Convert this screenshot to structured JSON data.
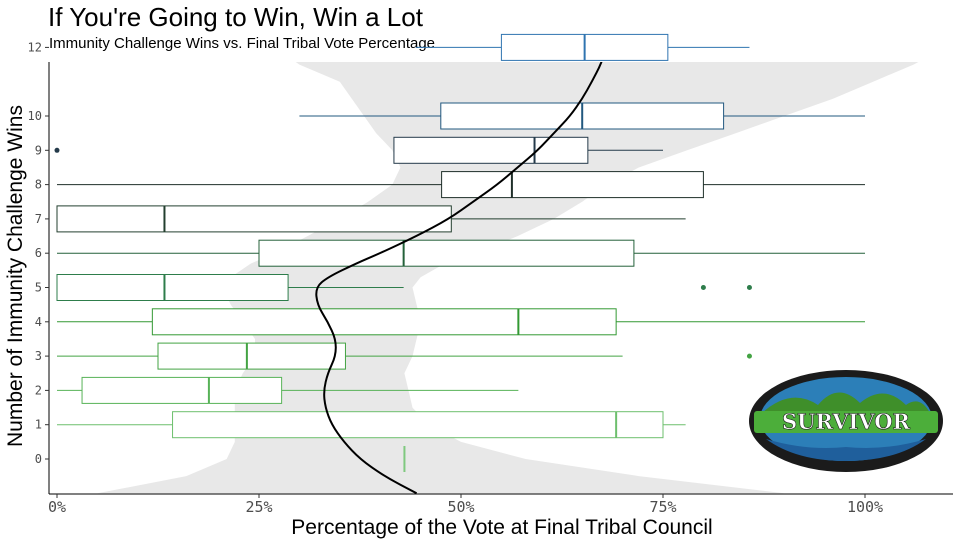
{
  "chart_data": {
    "type": "boxplot",
    "title": "If You're Going to Win, Win a Lot",
    "subtitle": "Immunity Challenge Wins vs. Final Tribal Vote Percentage",
    "xlabel": "Percentage of the Vote at Final Tribal Council",
    "ylabel": "Number of Immunity Challenge Wins",
    "xlim": [
      0,
      100
    ],
    "x_ticks": [
      0,
      25,
      50,
      75,
      100
    ],
    "x_tick_labels": [
      "0%",
      "25%",
      "50%",
      "75%",
      "100%"
    ],
    "y_categories": [
      0,
      1,
      2,
      3,
      4,
      5,
      6,
      7,
      8,
      9,
      10,
      12
    ],
    "grid": false,
    "logo_text": "SURVIVOR",
    "boxes": [
      {
        "wins": 0,
        "min": 43,
        "q1": 43,
        "median": 43,
        "q3": 43,
        "max": 43,
        "outliers": []
      },
      {
        "wins": 1,
        "min": 0,
        "q1": 14.3,
        "median": 69.2,
        "q3": 75,
        "max": 77.8,
        "outliers": []
      },
      {
        "wins": 2,
        "min": 0,
        "q1": 3.1,
        "median": 18.8,
        "q3": 27.8,
        "max": 57.1,
        "outliers": []
      },
      {
        "wins": 3,
        "min": 0,
        "q1": 12.5,
        "median": 23.5,
        "q3": 35.7,
        "max": 70,
        "outliers": [
          85.7
        ]
      },
      {
        "wins": 4,
        "min": 0,
        "q1": 11.8,
        "median": 57.1,
        "q3": 69.2,
        "max": 100,
        "outliers": []
      },
      {
        "wins": 5,
        "min": 0,
        "q1": 0,
        "median": 13.3,
        "q3": 28.6,
        "max": 42.9,
        "outliers": [
          80,
          85.7
        ]
      },
      {
        "wins": 6,
        "min": 0,
        "q1": 25,
        "median": 42.9,
        "q3": 71.4,
        "max": 100,
        "outliers": []
      },
      {
        "wins": 7,
        "min": 0,
        "q1": 0,
        "median": 13.3,
        "q3": 48.8,
        "max": 77.8,
        "outliers": []
      },
      {
        "wins": 8,
        "min": 0,
        "q1": 47.6,
        "median": 56.3,
        "q3": 80,
        "max": 100,
        "outliers": []
      },
      {
        "wins": 9,
        "min": 41.7,
        "q1": 41.7,
        "median": 59.1,
        "q3": 65.7,
        "max": 75,
        "outliers": [
          0
        ]
      },
      {
        "wins": 10,
        "min": 30,
        "q1": 47.5,
        "median": 65,
        "q3": 82.5,
        "max": 100,
        "outliers": []
      },
      {
        "wins": 12,
        "min": 44.4,
        "q1": 55,
        "median": 65.3,
        "q3": 75.6,
        "max": 85.7,
        "outliers": []
      }
    ],
    "colors": {
      "0": "#7fc97f",
      "1": "#6dbf6d",
      "2": "#57b257",
      "3": "#43a343",
      "4": "#339933",
      "5": "#2e7d4b",
      "6": "#24613a",
      "7": "#233f2f",
      "8": "#1f2f29",
      "9": "#243a4a",
      "10": "#22587f",
      "12": "#2f74b0"
    },
    "trend": {
      "color": "#000000",
      "ribbon_color": "#e8e8e8",
      "points": [
        {
          "y": -1.0,
          "x": 44.5,
          "lo": 5,
          "hi": 90
        },
        {
          "y": -0.5,
          "x": 40.5,
          "lo": 16,
          "hi": 72
        },
        {
          "y": 0.0,
          "x": 37.5,
          "lo": 21,
          "hi": 58
        },
        {
          "y": 0.5,
          "x": 35.5,
          "lo": 22,
          "hi": 50
        },
        {
          "y": 1.0,
          "x": 34.0,
          "lo": 22,
          "hi": 46
        },
        {
          "y": 1.5,
          "x": 33.2,
          "lo": 22,
          "hi": 44
        },
        {
          "y": 2.0,
          "x": 33.0,
          "lo": 22,
          "hi": 43.5
        },
        {
          "y": 2.5,
          "x": 33.5,
          "lo": 23,
          "hi": 43
        },
        {
          "y": 3.0,
          "x": 34.5,
          "lo": 24.5,
          "hi": 44
        },
        {
          "y": 3.5,
          "x": 34.5,
          "lo": 24.5,
          "hi": 44.5
        },
        {
          "y": 4.0,
          "x": 33.5,
          "lo": 23,
          "hi": 45
        },
        {
          "y": 4.5,
          "x": 32.2,
          "lo": 21.5,
          "hi": 44.5
        },
        {
          "y": 5.0,
          "x": 32.0,
          "lo": 20.5,
          "hi": 44
        },
        {
          "y": 5.3,
          "x": 33.5,
          "lo": 21.5,
          "hi": 45
        },
        {
          "y": 5.7,
          "x": 37.0,
          "lo": 24,
          "hi": 48
        },
        {
          "y": 6.0,
          "x": 40.0,
          "lo": 27,
          "hi": 52
        },
        {
          "y": 6.5,
          "x": 44.5,
          "lo": 31,
          "hi": 57
        },
        {
          "y": 7.0,
          "x": 48.5,
          "lo": 35,
          "hi": 61.5
        },
        {
          "y": 7.5,
          "x": 51.5,
          "lo": 38.5,
          "hi": 65
        },
        {
          "y": 8.0,
          "x": 54.5,
          "lo": 41.5,
          "hi": 68
        },
        {
          "y": 8.5,
          "x": 57.0,
          "lo": 42.5,
          "hi": 72
        },
        {
          "y": 9.0,
          "x": 59.5,
          "lo": 41.5,
          "hi": 78
        },
        {
          "y": 9.5,
          "x": 61.5,
          "lo": 39.5,
          "hi": 84
        },
        {
          "y": 10.0,
          "x": 63.5,
          "lo": 38,
          "hi": 90
        },
        {
          "y": 10.5,
          "x": 65.0,
          "lo": 36.5,
          "hi": 96
        },
        {
          "y": 11.0,
          "x": 66.2,
          "lo": 35,
          "hi": 101
        },
        {
          "y": 11.5,
          "x": 67.3,
          "lo": 30,
          "hi": 106
        },
        {
          "y": 12.0,
          "x": 68.0,
          "lo": 27,
          "hi": 110
        }
      ]
    }
  }
}
